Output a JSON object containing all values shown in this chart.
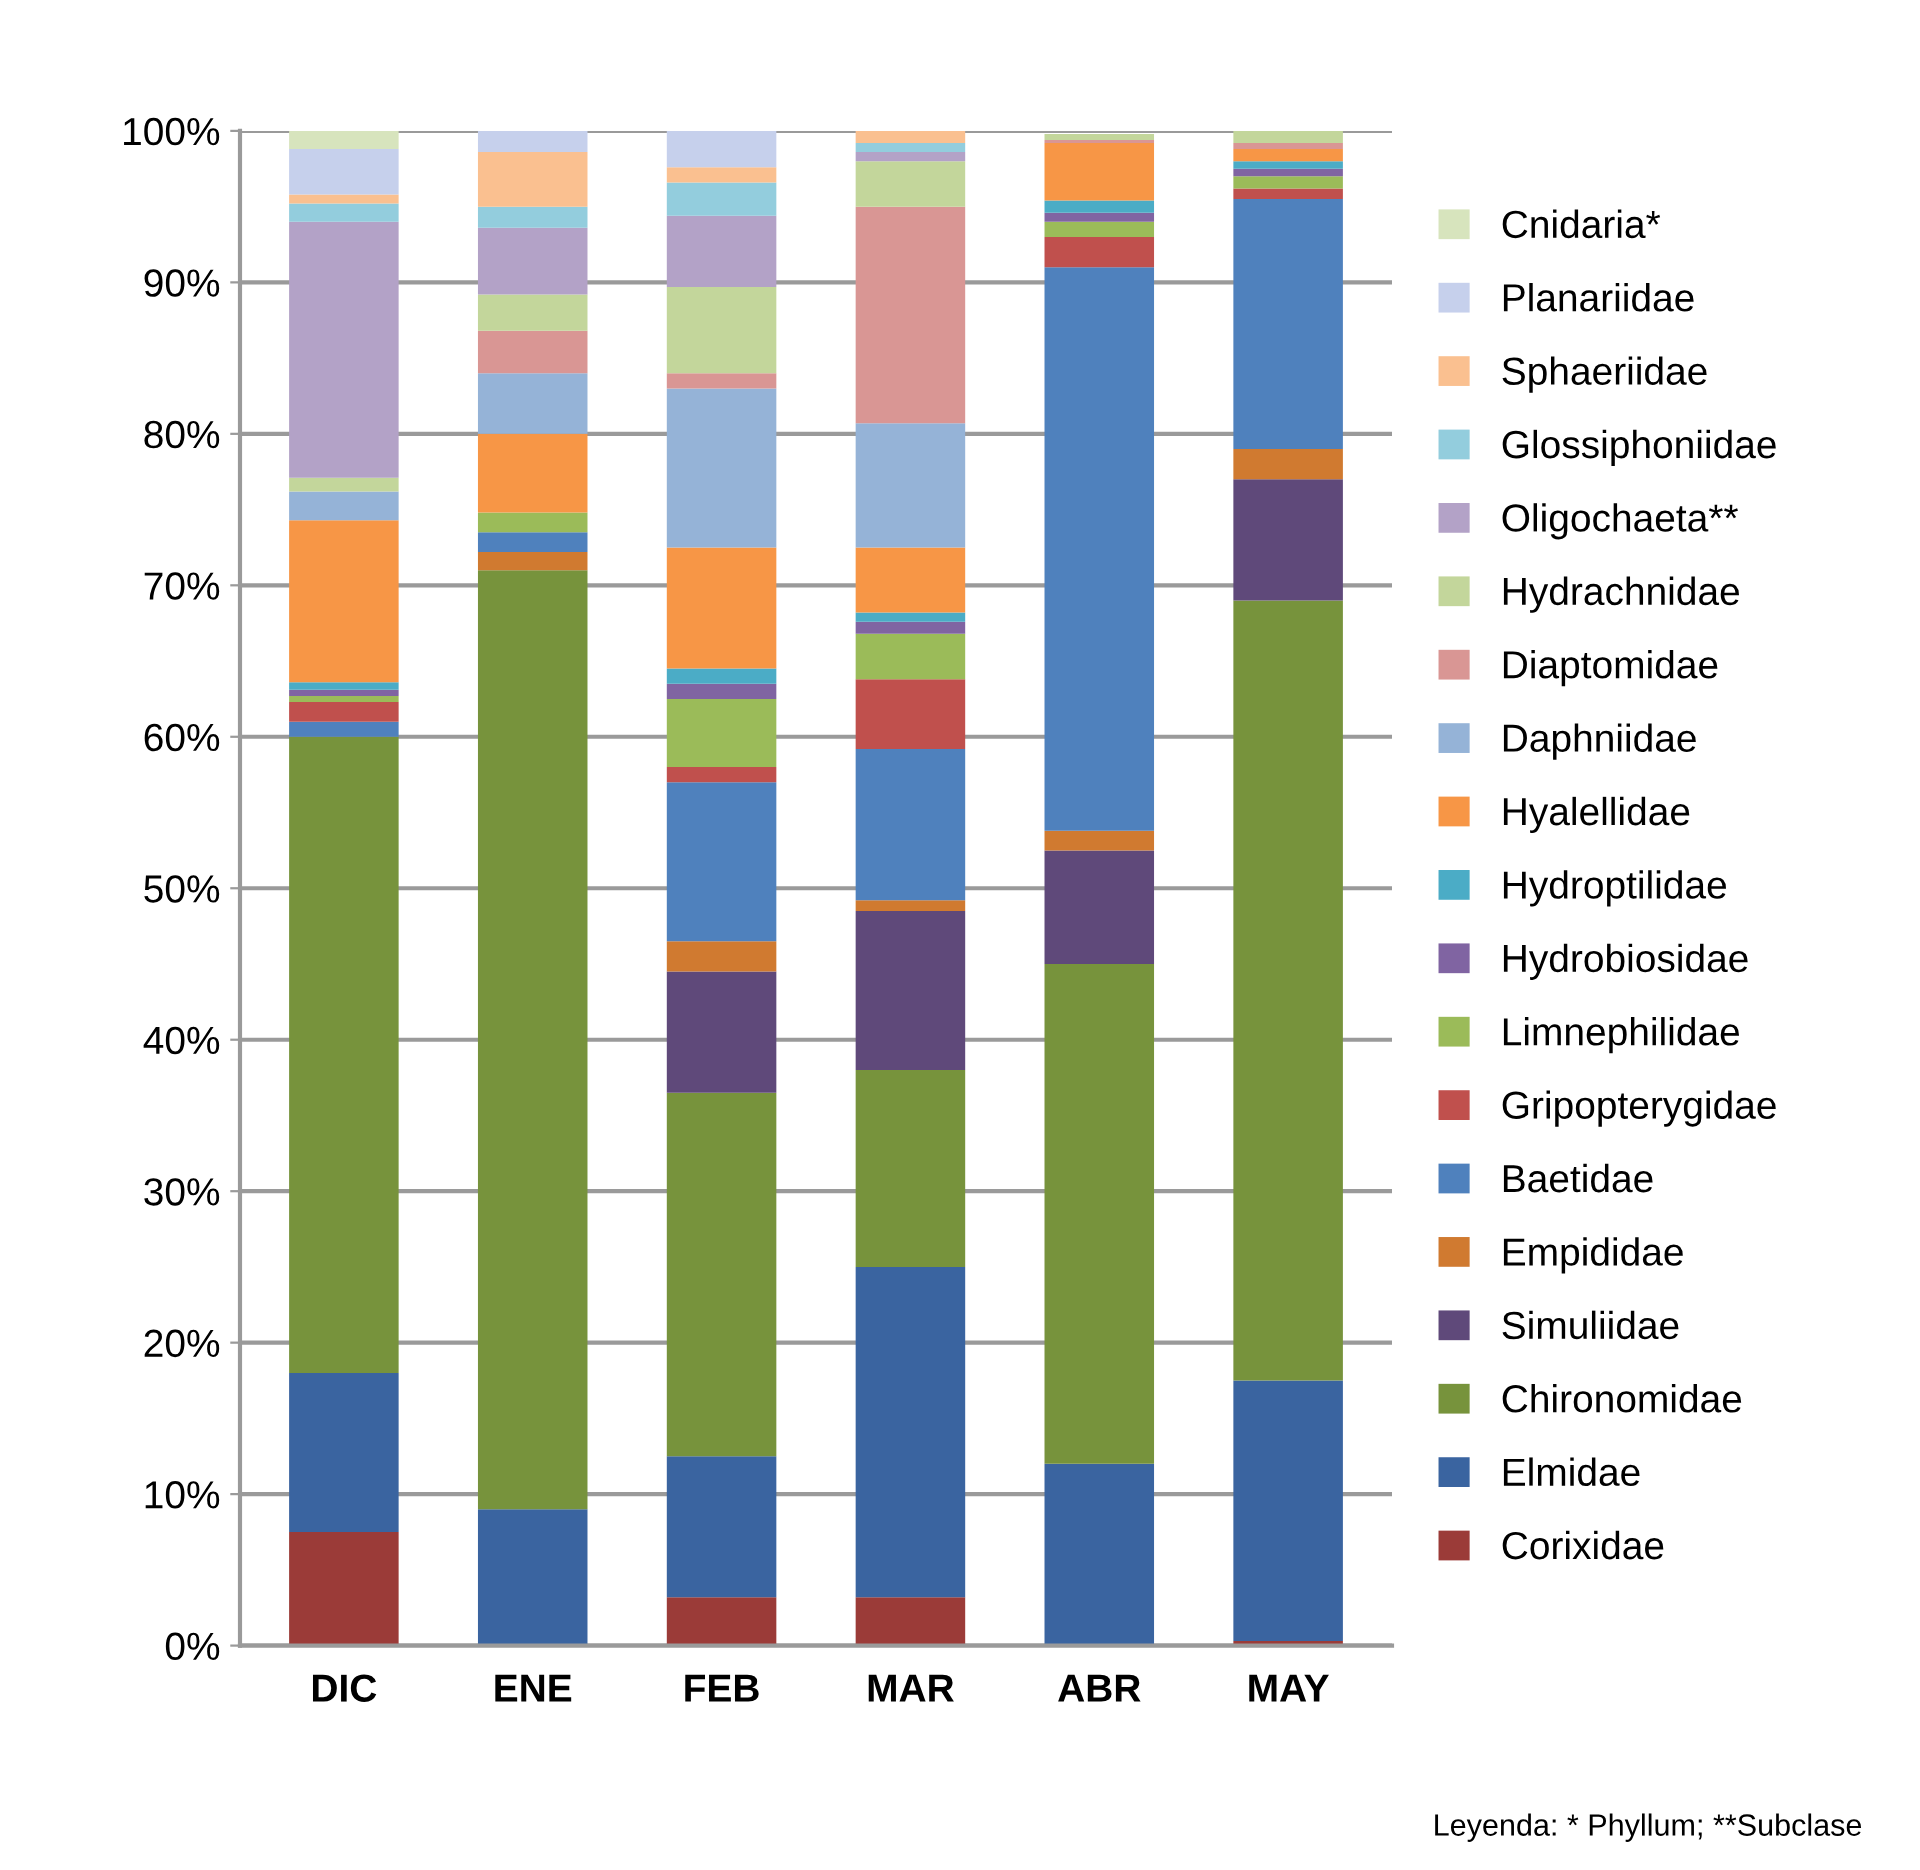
{
  "chart_data": {
    "type": "bar",
    "stacked": true,
    "categories": [
      "DIC",
      "ENE",
      "FEB",
      "MAR",
      "ABR",
      "MAY"
    ],
    "ylim": [
      0,
      100
    ],
    "yticks": [
      {
        "value": 0,
        "label": "0%"
      },
      {
        "value": 10,
        "label": "10%"
      },
      {
        "value": 20,
        "label": "20%"
      },
      {
        "value": 30,
        "label": "30%"
      },
      {
        "value": 40,
        "label": "40%"
      },
      {
        "value": 50,
        "label": "50%"
      },
      {
        "value": 60,
        "label": "60%"
      },
      {
        "value": 70,
        "label": "70%"
      },
      {
        "value": 80,
        "label": "80%"
      },
      {
        "value": 90,
        "label": "90%"
      },
      {
        "value": 100,
        "label": "100%"
      }
    ],
    "grid": "y",
    "legend": "right",
    "annotations": [
      "Leyenda: * Phyllum; **Subclase"
    ],
    "series": [
      {
        "name": "Corixidae",
        "color": "#9b3b38",
        "values": [
          7.5,
          0,
          3.2,
          3.2,
          0,
          0.3
        ]
      },
      {
        "name": "Elmidae",
        "color": "#3a64a0",
        "values": [
          10.5,
          9,
          9.3,
          21.8,
          12,
          17.2
        ]
      },
      {
        "name": "Chironomidae",
        "color": "#77933c",
        "values": [
          42,
          62,
          24,
          13,
          33,
          51.5
        ]
      },
      {
        "name": "Simuliidae",
        "color": "#5f497a",
        "values": [
          0,
          0,
          8,
          10.5,
          7.5,
          8
        ]
      },
      {
        "name": "Empididae",
        "color": "#d07a30",
        "values": [
          0,
          1.2,
          2,
          0.7,
          1.3,
          2
        ]
      },
      {
        "name": "Baetidae",
        "color": "#4f81bd",
        "values": [
          1,
          1.3,
          10.5,
          10,
          37.2,
          16.5
        ]
      },
      {
        "name": "Gripopterygidae",
        "color": "#c0504d",
        "values": [
          1.3,
          0,
          1,
          4.6,
          2,
          0.7
        ]
      },
      {
        "name": "Limnephilidae",
        "color": "#9bbb59",
        "values": [
          0.4,
          1.3,
          4.5,
          3,
          1,
          0.8
        ]
      },
      {
        "name": "Hydrobiosidae",
        "color": "#8064a2",
        "values": [
          0.4,
          0,
          1,
          0.8,
          0.6,
          0.5
        ]
      },
      {
        "name": "Hydroptilidae",
        "color": "#4bacc6",
        "values": [
          0.5,
          0,
          1,
          0.6,
          0.8,
          0.5
        ]
      },
      {
        "name": "Hyalellidae",
        "color": "#f79646",
        "values": [
          10.7,
          5.2,
          8,
          4.3,
          3.8,
          0.8
        ]
      },
      {
        "name": "Daphniidae",
        "color": "#95b3d7",
        "values": [
          1.9,
          4,
          10.5,
          8.2,
          0,
          0
        ]
      },
      {
        "name": "Diaptomidae",
        "color": "#d99694",
        "values": [
          0,
          2.8,
          1,
          14.3,
          0.2,
          0.4
        ]
      },
      {
        "name": "Hydrachnidae",
        "color": "#c3d69b",
        "values": [
          0.9,
          2.4,
          5.7,
          3,
          0.4,
          0.8
        ]
      },
      {
        "name": "Oligochaeta**",
        "color": "#b3a2c7",
        "values": [
          16.9,
          4.4,
          4.7,
          0.6,
          null,
          0
        ]
      },
      {
        "name": "Glossiphoniidae",
        "color": "#93cddd",
        "values": [
          1.2,
          1.4,
          2.2,
          0.6,
          0,
          0
        ]
      },
      {
        "name": "Sphaeriidae",
        "color": "#fac090",
        "values": [
          0.6,
          3.6,
          1,
          0.8,
          0,
          0
        ]
      },
      {
        "name": "Planariidae",
        "color": "#c6d0ec",
        "values": [
          3,
          1.4,
          2.4,
          0,
          0,
          0
        ]
      },
      {
        "name": "Cnidaria*",
        "color": "#d7e4bd",
        "values": [
          1.2,
          0,
          0,
          0,
          0,
          0
        ]
      }
    ]
  }
}
